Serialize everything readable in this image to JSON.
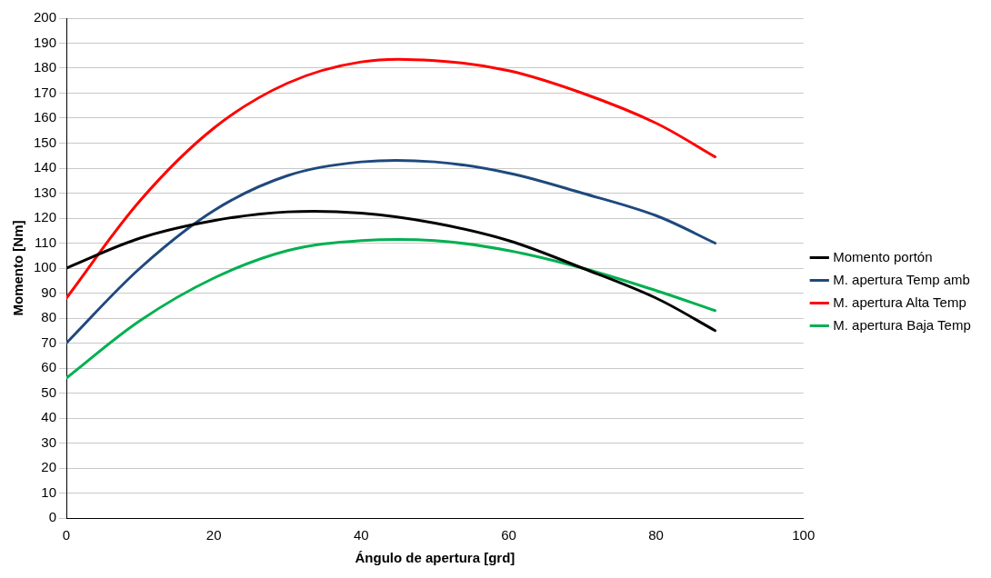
{
  "chart_data": {
    "type": "line",
    "xlabel": "Ángulo de apertura [grd]",
    "ylabel": "Momento [Nm]",
    "x": [
      0,
      10,
      20,
      30,
      40,
      50,
      60,
      70,
      80,
      88
    ],
    "series": [
      {
        "name": "Momento portón",
        "color": "#000000",
        "values": [
          100,
          112,
          119,
          122.5,
          122,
          118,
          111,
          100,
          88,
          75
        ]
      },
      {
        "name": "M. apertura Temp amb",
        "color": "#1f497d",
        "values": [
          70,
          100,
          123,
          137,
          142.5,
          142.5,
          138,
          130,
          121,
          110
        ]
      },
      {
        "name": "M. apertura Alta Temp",
        "color": "#ff0000",
        "values": [
          88,
          127,
          156,
          174,
          182.5,
          183,
          179,
          170,
          158,
          144.5
        ]
      },
      {
        "name": "M. apertura Baja Temp",
        "color": "#00b050",
        "values": [
          56,
          79,
          96,
          107,
          111,
          111,
          107,
          100,
          91,
          83
        ]
      }
    ],
    "xlim": [
      0,
      100
    ],
    "xticks": [
      0,
      20,
      40,
      60,
      80,
      100
    ],
    "ylim": [
      0,
      200
    ],
    "yticks": [
      0,
      10,
      20,
      30,
      40,
      50,
      60,
      70,
      80,
      90,
      100,
      110,
      120,
      130,
      140,
      150,
      160,
      170,
      180,
      190,
      200
    ],
    "grid": "y",
    "legend": "right",
    "marker": "none",
    "line_style": "solid"
  }
}
